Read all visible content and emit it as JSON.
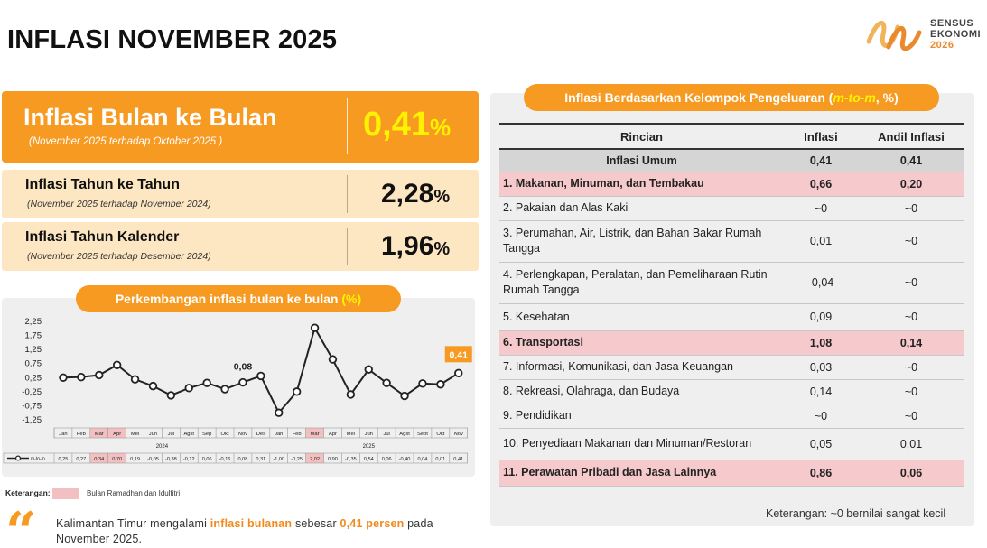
{
  "header": {
    "title": "INFLASI NOVEMBER 2025",
    "logo_lines": [
      "SENSUS",
      "EKONOMI"
    ],
    "logo_year": "2026"
  },
  "kpis": {
    "mtm": {
      "label": "Inflasi Bulan ke Bulan",
      "sub": "(November 2025 terhadap Oktober 2025 )",
      "value": "0,41",
      "unit": "%"
    },
    "yoy": {
      "label": "Inflasi Tahun ke Tahun",
      "sub": "(November 2025 terhadap November 2024)",
      "value": "2,28",
      "unit": "%"
    },
    "ytd": {
      "label": "Inflasi Tahun Kalender",
      "sub": "(November 2025 terhadap Desember 2024)",
      "value": "1,96",
      "unit": "%"
    }
  },
  "chart_section": {
    "title": "Perkembangan inflasi bulan ke bulan ",
    "title_unit": "(%)",
    "legend_label": "Keterangan:",
    "legend_text": "Bulan Ramadhan dan Idulfitri",
    "highlight_color": "#f2c0c0",
    "line_color": "#222222",
    "marker_color": "#ffffff",
    "callout_color": "#f79a22"
  },
  "chart_data": {
    "type": "line",
    "series": [
      {
        "name": "m-to-m",
        "values": [
          0.25,
          0.27,
          0.34,
          0.7,
          0.19,
          -0.05,
          -0.38,
          -0.12,
          0.06,
          -0.16,
          0.08,
          0.31,
          -1.0,
          -0.25,
          2.02,
          0.9,
          -0.35,
          0.54,
          0.06,
          -0.4,
          0.04,
          0.01,
          0.41
        ]
      }
    ],
    "categories": [
      "Jan",
      "Feb",
      "Mar",
      "Apr",
      "Mei",
      "Jun",
      "Jul",
      "Agst",
      "Sep",
      "Okt",
      "Nov",
      "Des",
      "Jan",
      "Feb",
      "Mar",
      "Apr",
      "Mei",
      "Jun",
      "Jul",
      "Agst",
      "Sept",
      "Okt",
      "Nov"
    ],
    "table_values": [
      "0,25",
      "0,27",
      "0,34",
      "0,70",
      "0,19",
      "-0,05",
      "-0,38",
      "-0,12",
      "0,06",
      "-0,16",
      "0,08",
      "0,31",
      "-1,00",
      "-0,25",
      "2,02",
      "0,90",
      "-0,35",
      "0,54",
      "0,06",
      "-0,40",
      "0,04",
      "0,01",
      "0,41"
    ],
    "years": [
      {
        "label": "2024",
        "start": 0,
        "end": 11
      },
      {
        "label": "2025",
        "start": 12,
        "end": 22
      }
    ],
    "highlighted_indices": [
      2,
      3,
      14
    ],
    "annotations": [
      {
        "index": 10,
        "text": "0,08",
        "style": "plain"
      },
      {
        "index": 22,
        "text": "0,41",
        "style": "callout"
      }
    ],
    "y_ticks": [
      "2,25",
      "1,75",
      "1,25",
      "0,75",
      "0,25",
      "-0,25",
      "-0,75",
      "-1,25"
    ],
    "y_tick_values": [
      2.25,
      1.75,
      1.25,
      0.75,
      0.25,
      -0.25,
      -0.75,
      -1.25
    ],
    "ylim": [
      -1.25,
      2.25
    ],
    "grid": false,
    "legend": "bottom-left"
  },
  "table": {
    "title": "Inflasi Berdasarkan Kelompok Pengeluaran (",
    "title_accent": "m-to-m",
    "title_end": ", %)",
    "headers": {
      "name": "Rincian",
      "inflasi": "Inflasi",
      "andil": "Andil Inflasi"
    },
    "total": {
      "name": "Inflasi Umum",
      "inflasi": "0,41",
      "andil": "0,41"
    },
    "rows": [
      {
        "name": "1.  Makanan, Minuman, dan Tembakau",
        "inflasi": "0,66",
        "andil": "0,20",
        "hi": true
      },
      {
        "name": "2.  Pakaian dan Alas Kaki",
        "inflasi": "~0",
        "andil": "~0",
        "hi": false
      },
      {
        "name": "3.  Perumahan, Air, Listrik, dan Bahan Bakar Rumah Tangga",
        "inflasi": "0,01",
        "andil": "~0",
        "hi": false
      },
      {
        "name": "4.  Perlengkapan, Peralatan, dan Pemeliharaan Rutin Rumah Tangga",
        "inflasi": "-0,04",
        "andil": "~0",
        "hi": false
      },
      {
        "name": "5.  Kesehatan",
        "inflasi": "0,09",
        "andil": "~0",
        "hi": false
      },
      {
        "name": "6.  Transportasi",
        "inflasi": "1,08",
        "andil": "0,14",
        "hi": true
      },
      {
        "name": "7.  Informasi, Komunikasi, dan Jasa Keuangan",
        "inflasi": "0,03",
        "andil": "~0",
        "hi": false
      },
      {
        "name": "8.  Rekreasi, Olahraga, dan Budaya",
        "inflasi": "0,14",
        "andil": "~0",
        "hi": false
      },
      {
        "name": "9.  Pendidikan",
        "inflasi": "~0",
        "andil": "~0",
        "hi": false
      },
      {
        "name": "10. Penyediaan Makanan dan Minuman/Restoran",
        "inflasi": "0,05",
        "andil": "0,01",
        "hi": false
      },
      {
        "name": "11. Perawatan Pribadi dan Jasa Lainnya",
        "inflasi": "0,86",
        "andil": "0,06",
        "hi": true
      }
    ],
    "note": "Keterangan: ~0 bernilai sangat kecil"
  },
  "summary": {
    "part1": "Kalimantan Timur mengalami ",
    "hl1": "inflasi bulanan",
    "part2": " sebesar ",
    "hl2": "0,41 persen",
    "part3": " pada November 2025."
  }
}
